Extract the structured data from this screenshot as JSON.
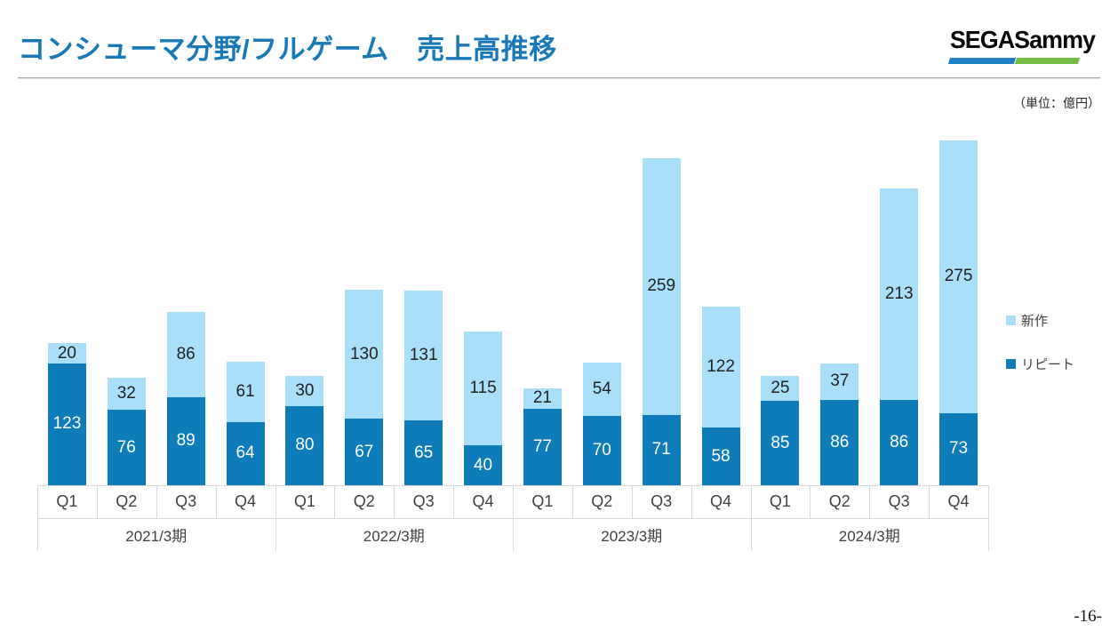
{
  "header": {
    "title": "コンシューマ分野/フルゲーム　売上高推移",
    "logo_text": "SEGASammy",
    "logo_bar_colors": [
      "#1F7EC5",
      "#74BD44"
    ],
    "title_color": "#1878B8"
  },
  "chart": {
    "unit_label": "（単位：億円）",
    "legend": [
      {
        "label": "新作",
        "color": "#A9DFF9"
      },
      {
        "label": "リピート",
        "color": "#0E7CB8"
      }
    ]
  },
  "chart_data": {
    "type": "bar",
    "stacked": true,
    "title": "コンシューマ分野/フルゲーム　売上高推移",
    "unit": "億円",
    "grid": false,
    "value_labels": true,
    "legend_position": "right",
    "groups": [
      {
        "label": "2021/3期",
        "quarters": [
          "Q1",
          "Q2",
          "Q3",
          "Q4"
        ]
      },
      {
        "label": "2022/3期",
        "quarters": [
          "Q1",
          "Q2",
          "Q3",
          "Q4"
        ]
      },
      {
        "label": "2023/3期",
        "quarters": [
          "Q1",
          "Q2",
          "Q3",
          "Q4"
        ]
      },
      {
        "label": "2024/3期",
        "quarters": [
          "Q1",
          "Q2",
          "Q3",
          "Q4"
        ]
      }
    ],
    "categories": [
      "Q1",
      "Q2",
      "Q3",
      "Q4",
      "Q1",
      "Q2",
      "Q3",
      "Q4",
      "Q1",
      "Q2",
      "Q3",
      "Q4",
      "Q1",
      "Q2",
      "Q3",
      "Q4"
    ],
    "series": [
      {
        "name": "リピート",
        "color": "#0E7CB8",
        "label_color": "#FFFFFF",
        "values": [
          123,
          76,
          89,
          64,
          80,
          67,
          65,
          40,
          77,
          70,
          71,
          58,
          85,
          86,
          86,
          73
        ]
      },
      {
        "name": "新作",
        "color": "#A9DFF9",
        "label_color": "#222222",
        "values": [
          20,
          32,
          86,
          61,
          30,
          130,
          131,
          115,
          21,
          54,
          259,
          122,
          25,
          37,
          213,
          275
        ]
      }
    ]
  },
  "footer": {
    "page_number": "-16-"
  }
}
